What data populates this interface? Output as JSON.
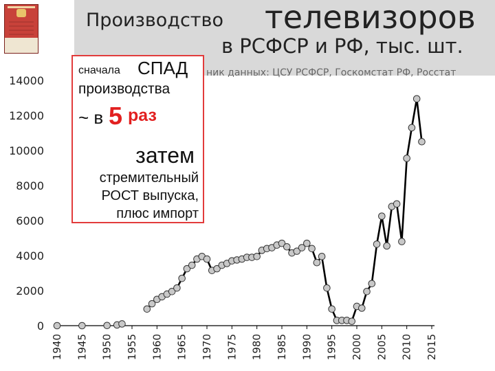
{
  "title": {
    "part1": "Производство",
    "part2": "телевизоров",
    "subtitle": "в РСФСР и РФ, тыс. шт.",
    "source": "ник данных: ЦСУ РСФСР, Госкомстат РФ, Росстат"
  },
  "callout": {
    "line1a": "сначала",
    "line1b": "СПАД",
    "line2": "производства",
    "line3a": "~ в",
    "line3b": "5",
    "line3c": "раз",
    "line4": "затем",
    "line5": "стремительный",
    "line6": "РОСТ выпуска,",
    "line7": "плюс импорт"
  },
  "colors": {
    "callout_border": "#e23b3b",
    "highlight": "#e22020",
    "marker_fill": "#c8c8c8",
    "line": "#000000",
    "title_band": "#d9d9d9"
  },
  "chart_data": {
    "type": "line",
    "title": "Производство телевизоров в РСФСР и РФ, тыс. шт.",
    "xlabel": "",
    "ylabel": "",
    "xlim": [
      1940,
      2015
    ],
    "ylim": [
      0,
      14000
    ],
    "grid": false,
    "x_ticks": [
      1940,
      1945,
      1950,
      1955,
      1960,
      1965,
      1970,
      1975,
      1980,
      1985,
      1990,
      1995,
      2000,
      2005,
      2010,
      2015
    ],
    "y_ticks": [
      0,
      2000,
      4000,
      6000,
      8000,
      10000,
      12000,
      14000
    ],
    "isolated_points": [
      {
        "x": 1940,
        "y": 0
      },
      {
        "x": 1945,
        "y": 0
      },
      {
        "x": 1950,
        "y": 10
      },
      {
        "x": 1952,
        "y": 40
      },
      {
        "x": 1953,
        "y": 100
      }
    ],
    "series": [
      {
        "x": [
          1958,
          1959,
          1960,
          1961,
          1962,
          1963,
          1964,
          1965,
          1966,
          1967,
          1968,
          1969,
          1970,
          1971,
          1972,
          1973,
          1974,
          1975,
          1976,
          1977,
          1978,
          1979,
          1980,
          1981,
          1982,
          1983,
          1984,
          1985,
          1986,
          1987,
          1988,
          1989,
          1990,
          1991,
          1992,
          1993,
          1994,
          1995,
          1996,
          1997,
          1998,
          1999,
          2000,
          2001,
          2002,
          2003,
          2004,
          2005,
          2006,
          2007,
          2008,
          2009,
          2010,
          2011,
          2012,
          2013
        ],
        "y": [
          950,
          1250,
          1500,
          1650,
          1800,
          1950,
          2150,
          2700,
          3250,
          3450,
          3800,
          3950,
          3800,
          3150,
          3250,
          3450,
          3550,
          3700,
          3750,
          3800,
          3900,
          3900,
          3950,
          4300,
          4400,
          4450,
          4600,
          4700,
          4500,
          4150,
          4250,
          4450,
          4700,
          4400,
          3600,
          3950,
          2150,
          950,
          300,
          300,
          300,
          250,
          1100,
          1000,
          1950,
          2400,
          4650,
          6250,
          4550,
          6800,
          6950,
          4800,
          9550,
          11300,
          12950,
          10500
        ]
      }
    ]
  }
}
